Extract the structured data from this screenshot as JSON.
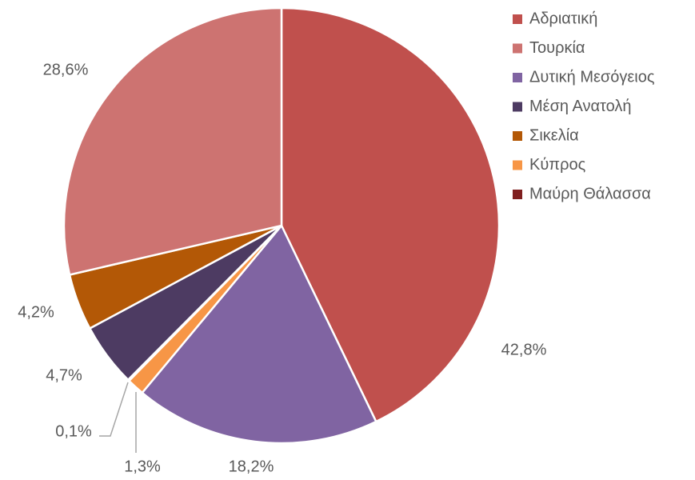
{
  "chart_data": {
    "type": "pie",
    "categories": [
      "Αδριατική",
      "Τουρκία",
      "Δυτική Μεσόγειος",
      "Μέση Ανατολή",
      "Σικελία",
      "Κύπρος",
      "Μαύρη Θάλασσα"
    ],
    "values": [
      42.8,
      28.6,
      18.2,
      4.7,
      4.2,
      1.3,
      0.1
    ],
    "value_labels": [
      "42,8%",
      "28,6%",
      "18,2%",
      "4,7%",
      "4,2%",
      "1,3%",
      "0,1%"
    ],
    "colors": [
      "#c0504d",
      "#cd7371",
      "#8064a2",
      "#4d3b62",
      "#b35806",
      "#f79646",
      "#7f1f1f"
    ],
    "legend": "right"
  }
}
